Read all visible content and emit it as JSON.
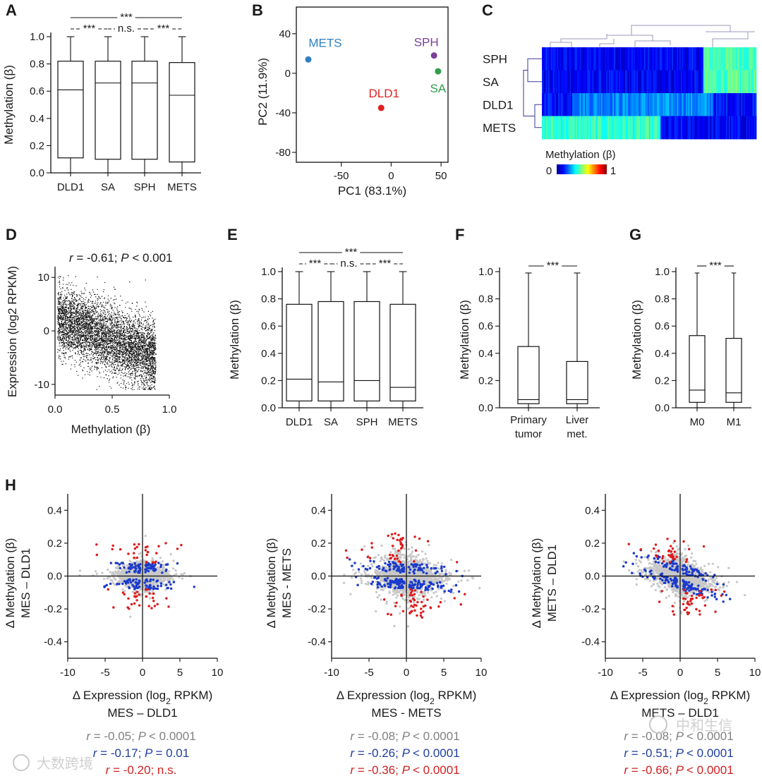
{
  "colors": {
    "mets": "#2f7fc1",
    "sph": "#7b3f99",
    "dld1": "#e02020",
    "sa": "#2e9e4a",
    "grey": "#808080",
    "blue": "#1f3f9f",
    "red": "#d22020",
    "scatter_grey": "#c8c8c8",
    "scatter_blue": "#1a3acc",
    "scatter_red": "#dd1c1c"
  },
  "watermarks": {
    "left": "大数跨境",
    "right": "中和生信"
  },
  "chart_data": [
    {
      "panel": "A",
      "type": "box",
      "ylabel": "Methylation (β)",
      "ylim": [
        0,
        1.0
      ],
      "yticks": [
        "0.0",
        "0.2",
        "0.4",
        "0.6",
        "0.8",
        "1.0"
      ],
      "categories": [
        "DLD1",
        "SA",
        "SPH",
        "METS"
      ],
      "boxes": [
        {
          "min": 0.0,
          "q1": 0.11,
          "median": 0.61,
          "q3": 0.82,
          "max": 1.0
        },
        {
          "min": 0.0,
          "q1": 0.1,
          "median": 0.66,
          "q3": 0.82,
          "max": 1.0
        },
        {
          "min": 0.0,
          "q1": 0.1,
          "median": 0.66,
          "q3": 0.82,
          "max": 1.0
        },
        {
          "min": 0.0,
          "q1": 0.08,
          "median": 0.57,
          "q3": 0.81,
          "max": 1.0
        }
      ],
      "annotations": [
        "***",
        "***",
        "n.s.",
        "***"
      ]
    },
    {
      "panel": "B",
      "type": "scatter",
      "xlabel": "PC1 (83.1%)",
      "ylabel": "PC2 (11.9%)",
      "xlim": [
        -95,
        57
      ],
      "ylim": [
        -90,
        67
      ],
      "xticks": [
        -50,
        0,
        50
      ],
      "yticks": [
        40,
        0,
        -40,
        -80
      ],
      "points": [
        {
          "name": "METS",
          "x": -83,
          "y": 14,
          "color": "mets"
        },
        {
          "name": "SPH",
          "x": 43,
          "y": 18,
          "color": "sph"
        },
        {
          "name": "SA",
          "x": 47,
          "y": 2,
          "color": "sa"
        },
        {
          "name": "DLD1",
          "x": -10,
          "y": -35,
          "color": "dld1"
        }
      ]
    },
    {
      "panel": "C",
      "type": "heatmap",
      "rows": [
        "SPH",
        "SA",
        "DLD1",
        "METS"
      ],
      "legend_title": "Methylation (β)",
      "legend_min": "0",
      "legend_max": "1"
    },
    {
      "panel": "D",
      "type": "scatter",
      "title": "r = -0.61; P < 0.001",
      "xlabel": "Methylation (β)",
      "ylabel": "Expression (log2 RPKM)",
      "xlim": [
        0,
        1.0
      ],
      "ylim": [
        -12,
        12
      ],
      "xticks": [
        "0.0",
        "0.5",
        "1.0"
      ],
      "yticks": [
        "10",
        "0",
        "-10"
      ],
      "trend": {
        "slope": -8.5,
        "intercept": 2.5,
        "sd": 3.2
      }
    },
    {
      "panel": "E",
      "type": "box",
      "ylabel": "Methylation (β)",
      "ylim": [
        0,
        1.0
      ],
      "yticks": [
        "0.0",
        "0.2",
        "0.4",
        "0.6",
        "0.8",
        "1.0"
      ],
      "categories": [
        "DLD1",
        "SA",
        "SPH",
        "METS"
      ],
      "boxes": [
        {
          "min": 0.0,
          "q1": 0.05,
          "median": 0.21,
          "q3": 0.76,
          "max": 1.0
        },
        {
          "min": 0.0,
          "q1": 0.05,
          "median": 0.19,
          "q3": 0.78,
          "max": 1.0
        },
        {
          "min": 0.0,
          "q1": 0.05,
          "median": 0.2,
          "q3": 0.78,
          "max": 1.0
        },
        {
          "min": 0.0,
          "q1": 0.05,
          "median": 0.15,
          "q3": 0.76,
          "max": 1.0
        }
      ],
      "annotations": [
        "***",
        "***",
        "n.s.",
        "***"
      ]
    },
    {
      "panel": "F",
      "type": "box",
      "ylabel": "Methylation (β)",
      "ylim": [
        0,
        1.0
      ],
      "yticks": [
        "0.0",
        "0.2",
        "0.4",
        "0.6",
        "0.8",
        "1.0"
      ],
      "categories": [
        [
          "Primary",
          "tumor"
        ],
        [
          "Liver",
          "met."
        ]
      ],
      "boxes": [
        {
          "min": 0.0,
          "q1": 0.03,
          "median": 0.06,
          "q3": 0.45,
          "max": 0.99
        },
        {
          "min": 0.0,
          "q1": 0.03,
          "median": 0.06,
          "q3": 0.34,
          "max": 0.99
        }
      ],
      "annotations": [
        "***"
      ]
    },
    {
      "panel": "G",
      "type": "box",
      "ylabel": "Methylation (β)",
      "ylim": [
        0,
        1.0
      ],
      "yticks": [
        "0.0",
        "0.2",
        "0.4",
        "0.6",
        "0.8",
        "1.0"
      ],
      "categories": [
        "M0",
        "M1"
      ],
      "boxes": [
        {
          "min": 0.0,
          "q1": 0.04,
          "median": 0.13,
          "q3": 0.53,
          "max": 0.99
        },
        {
          "min": 0.0,
          "q1": 0.04,
          "median": 0.11,
          "q3": 0.51,
          "max": 0.99
        }
      ],
      "annotations": [
        "***"
      ]
    },
    {
      "panel": "H",
      "type": "scatter",
      "grid": false,
      "xlim": [
        -10,
        10
      ],
      "ylim": [
        -0.5,
        0.5
      ],
      "xticks": [
        "-10",
        "-5",
        "0",
        "5",
        "10"
      ],
      "yticks": [
        "0.4",
        "0.2",
        "0.0",
        "-0.2",
        "-0.4"
      ],
      "plots": [
        {
          "ylabel1": "Δ Methylation (β)",
          "ylabel2": "MES – DLD1",
          "xlabel1": "Δ Expression (log",
          "xlabel_sub": "2",
          "xlabel1_end": " RPKM)",
          "xlabel2": "MES – DLD1",
          "spread": 1.0,
          "trend": 0.0,
          "stats": [
            {
              "r": "= -0.05; ",
              "p": "< 0.0001",
              "color": "grey"
            },
            {
              "r": "= -0.17; ",
              "p": "= 0.01",
              "color": "blue"
            },
            {
              "r": "= -0.20; ",
              "p": "n.s.",
              "color": "red",
              "ns": true
            }
          ]
        },
        {
          "ylabel1": "Δ Methylation (β)",
          "ylabel2": "MES - METS",
          "xlabel1": "Δ Expression (log",
          "xlabel_sub": "2",
          "xlabel1_end": " RPKM)",
          "xlabel2": "MES - METS",
          "spread": 1.5,
          "trend": -0.006,
          "stats": [
            {
              "r": "= -0.08; ",
              "p": "< 0.0001",
              "color": "grey"
            },
            {
              "r": "= -0.26; ",
              "p": "< 0.0001",
              "color": "blue"
            },
            {
              "r": "= -0.36; ",
              "p": "< 0.0001",
              "color": "red"
            }
          ]
        },
        {
          "ylabel1": "Δ Methylation (β)",
          "ylabel2": "METS – DLD1",
          "xlabel1": "Δ Expression (log",
          "xlabel_sub": "2",
          "xlabel1_end": " RPKM)",
          "xlabel2": "METS – DLD1",
          "spread": 1.3,
          "trend": -0.03,
          "stats": [
            {
              "r": "= -0.08; ",
              "p": "< 0.0001",
              "color": "grey"
            },
            {
              "r": "= -0.51; ",
              "p": "< 0.0001",
              "color": "blue"
            },
            {
              "r": "= -0.66; ",
              "p": "< 0.0001",
              "color": "red"
            }
          ]
        }
      ]
    }
  ]
}
